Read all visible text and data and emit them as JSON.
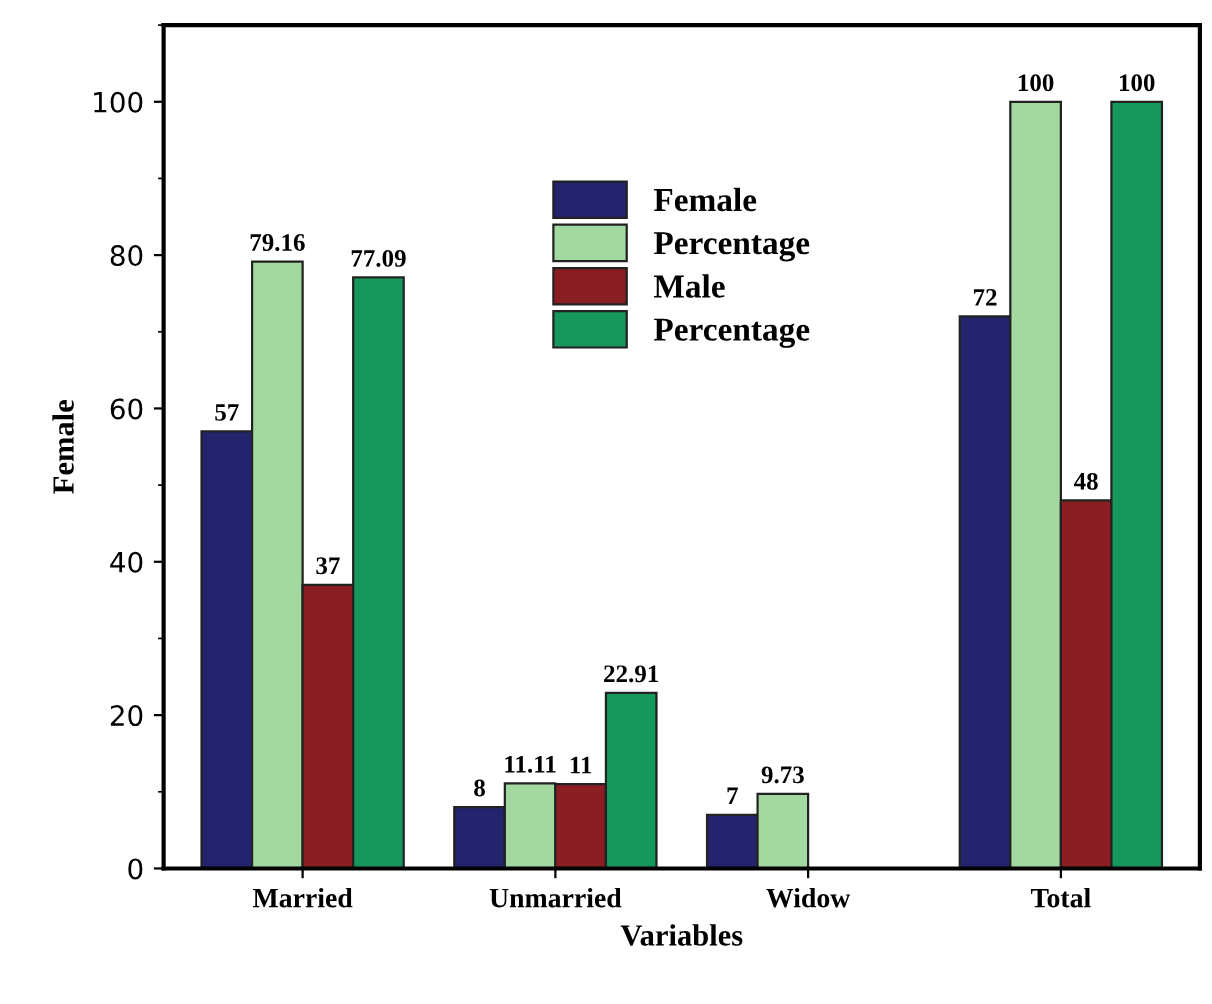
{
  "chart_data": {
    "type": "bar",
    "xlabel": "Variables",
    "ylabel": "Female",
    "categories": [
      "Married",
      "Unmarried",
      "Widow",
      "Total"
    ],
    "series": [
      {
        "name": "Female",
        "color": "#23236e",
        "values": [
          57,
          8,
          7,
          72
        ]
      },
      {
        "name": "Percentage",
        "color": "#a3d9a0",
        "values": [
          79.16,
          11.11,
          9.73,
          100
        ]
      },
      {
        "name": "Male",
        "color": "#8b1e22",
        "values": [
          37,
          11,
          null,
          48
        ]
      },
      {
        "name": "Percentage",
        "color": "#16985c",
        "values": [
          77.09,
          22.91,
          null,
          100
        ]
      }
    ],
    "ylim": [
      0,
      110
    ],
    "yticks": [
      0,
      20,
      40,
      60,
      80,
      100
    ],
    "data_labels": true,
    "legend": "top",
    "grid": false
  }
}
